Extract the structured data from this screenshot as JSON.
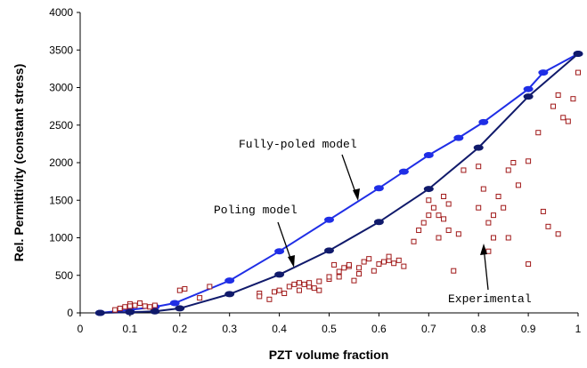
{
  "chart_data": {
    "type": "scatter",
    "title": "",
    "xlabel": "PZT volume fraction",
    "ylabel": "Rel. Permittivity (constant stress)",
    "xlim": [
      0,
      1
    ],
    "ylim": [
      0,
      4000
    ],
    "x_ticks": [
      "0",
      "0.1",
      "0.2",
      "0.3",
      "0.4",
      "0.5",
      "0.6",
      "0.7",
      "0.8",
      "0.9",
      "1"
    ],
    "y_ticks": [
      "0",
      "500",
      "1000",
      "1500",
      "2000",
      "2500",
      "3000",
      "3500",
      "4000"
    ],
    "grid": false,
    "legend": "none",
    "colors": {
      "fully_poled": "#1f2ee6",
      "poling": "#101a6b",
      "experimental": "#a01818"
    },
    "series": [
      {
        "key": "fully_poled",
        "type": "line",
        "x": [
          0.04,
          0.1,
          0.15,
          0.19,
          0.3,
          0.4,
          0.5,
          0.6,
          0.65,
          0.7,
          0.76,
          0.81,
          0.9,
          0.93,
          1.0
        ],
        "y": [
          0,
          40,
          80,
          130,
          430,
          820,
          1240,
          1660,
          1880,
          2100,
          2330,
          2540,
          2980,
          3200,
          3450
        ]
      },
      {
        "key": "poling",
        "type": "line",
        "x": [
          0.04,
          0.1,
          0.15,
          0.2,
          0.3,
          0.4,
          0.5,
          0.6,
          0.7,
          0.8,
          0.9,
          1.0
        ],
        "y": [
          0,
          10,
          20,
          60,
          250,
          510,
          830,
          1210,
          1650,
          2200,
          2880,
          3450
        ]
      },
      {
        "key": "experimental",
        "type": "scatter",
        "x": [
          0.07,
          0.08,
          0.09,
          0.1,
          0.1,
          0.11,
          0.12,
          0.13,
          0.14,
          0.15,
          0.2,
          0.21,
          0.24,
          0.26,
          0.36,
          0.36,
          0.38,
          0.39,
          0.4,
          0.41,
          0.42,
          0.43,
          0.44,
          0.44,
          0.45,
          0.46,
          0.46,
          0.47,
          0.48,
          0.48,
          0.5,
          0.5,
          0.51,
          0.52,
          0.52,
          0.53,
          0.54,
          0.54,
          0.55,
          0.56,
          0.56,
          0.57,
          0.58,
          0.59,
          0.6,
          0.61,
          0.62,
          0.62,
          0.63,
          0.64,
          0.65,
          0.67,
          0.68,
          0.69,
          0.7,
          0.7,
          0.71,
          0.72,
          0.72,
          0.73,
          0.73,
          0.74,
          0.74,
          0.75,
          0.76,
          0.77,
          0.8,
          0.8,
          0.81,
          0.82,
          0.82,
          0.83,
          0.83,
          0.84,
          0.85,
          0.86,
          0.86,
          0.87,
          0.88,
          0.9,
          0.9,
          0.92,
          0.93,
          0.94,
          0.95,
          0.96,
          0.96,
          0.97,
          0.98,
          0.99,
          1.0
        ],
        "y": [
          40,
          60,
          80,
          120,
          90,
          100,
          130,
          90,
          80,
          100,
          300,
          320,
          200,
          350,
          260,
          220,
          180,
          280,
          300,
          260,
          350,
          380,
          300,
          400,
          380,
          350,
          400,
          330,
          300,
          420,
          450,
          480,
          640,
          550,
          480,
          600,
          620,
          640,
          430,
          600,
          520,
          680,
          720,
          560,
          650,
          680,
          700,
          750,
          660,
          700,
          620,
          950,
          1100,
          1200,
          1300,
          1500,
          1400,
          1000,
          1300,
          1550,
          1250,
          1450,
          1100,
          560,
          1050,
          1900,
          1950,
          1400,
          1650,
          1200,
          820,
          1300,
          1000,
          1550,
          1400,
          1900,
          1000,
          2000,
          1700,
          650,
          2020,
          2400,
          1350,
          1150,
          2750,
          2900,
          1050,
          2600,
          2550,
          2850,
          3200
        ]
      }
    ],
    "annotations": [
      {
        "text": "Fully-poled model"
      },
      {
        "text": "Poling model"
      },
      {
        "text": "Experimental"
      }
    ]
  }
}
